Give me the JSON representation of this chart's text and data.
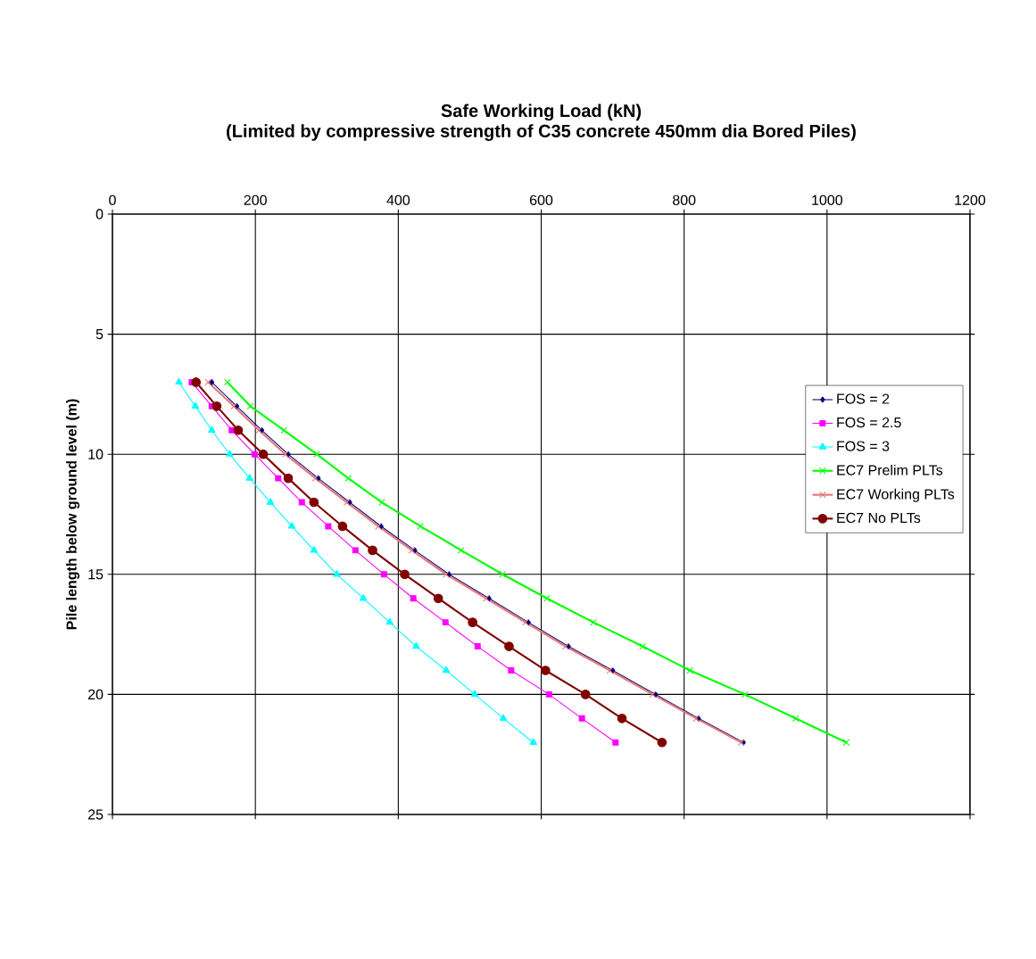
{
  "chart_data": {
    "type": "line",
    "title": "Safe Working Load (kN)",
    "subtitle": "(Limited by compressive strength of C35 concrete 450mm dia Bored Piles)",
    "ylabel": "Pile length below ground level (m)",
    "orientation": "horizontal",
    "x": [
      7,
      8,
      9,
      10,
      11,
      12,
      13,
      14,
      15,
      16,
      17,
      18,
      19,
      20,
      21,
      22
    ],
    "series": [
      {
        "name": "FOS = 2",
        "color": "#000080",
        "marker": "diamond",
        "values": [
          139,
          174,
          209,
          246,
          288,
          332,
          376,
          423,
          471,
          527,
          582,
          638,
          700,
          760,
          820,
          883
        ]
      },
      {
        "name": "FOS = 2.5",
        "color": "#ff00ff",
        "marker": "square",
        "values": [
          111,
          139,
          167,
          199,
          232,
          265,
          302,
          340,
          380,
          421,
          466,
          511,
          558,
          611,
          657,
          704
        ]
      },
      {
        "name": "FOS = 3",
        "color": "#00ffff",
        "marker": "triangle",
        "values": [
          93,
          116,
          139,
          164,
          192,
          221,
          251,
          282,
          314,
          351,
          388,
          425,
          467,
          507,
          547,
          589
        ]
      },
      {
        "name": "EC7 Prelim PLTs",
        "color": "#00ff00",
        "marker": "cross",
        "values": [
          161,
          193,
          240,
          286,
          330,
          377,
          431,
          488,
          546,
          608,
          673,
          742,
          808,
          885,
          956,
          1027
        ]
      },
      {
        "name": "EC7 Working PLTs",
        "color": "#e87878",
        "marker": "cross",
        "values": [
          134,
          170,
          205,
          242,
          284,
          328,
          372,
          419,
          467,
          523,
          578,
          634,
          696,
          756,
          817,
          880
        ]
      },
      {
        "name": "EC7 No PLTs",
        "color": "#800000",
        "marker": "circle",
        "values": [
          117,
          146,
          176,
          211,
          246,
          282,
          322,
          364,
          409,
          456,
          504,
          555,
          606,
          662,
          713,
          769
        ]
      }
    ],
    "xlim": [
      0,
      1200
    ],
    "xticks": [
      0,
      200,
      400,
      600,
      800,
      1000,
      1200
    ],
    "ylim": [
      25,
      0
    ],
    "yticks": [
      0,
      5,
      10,
      15,
      20,
      25
    ],
    "grid": true,
    "legend": "right",
    "line_style": "solid"
  }
}
